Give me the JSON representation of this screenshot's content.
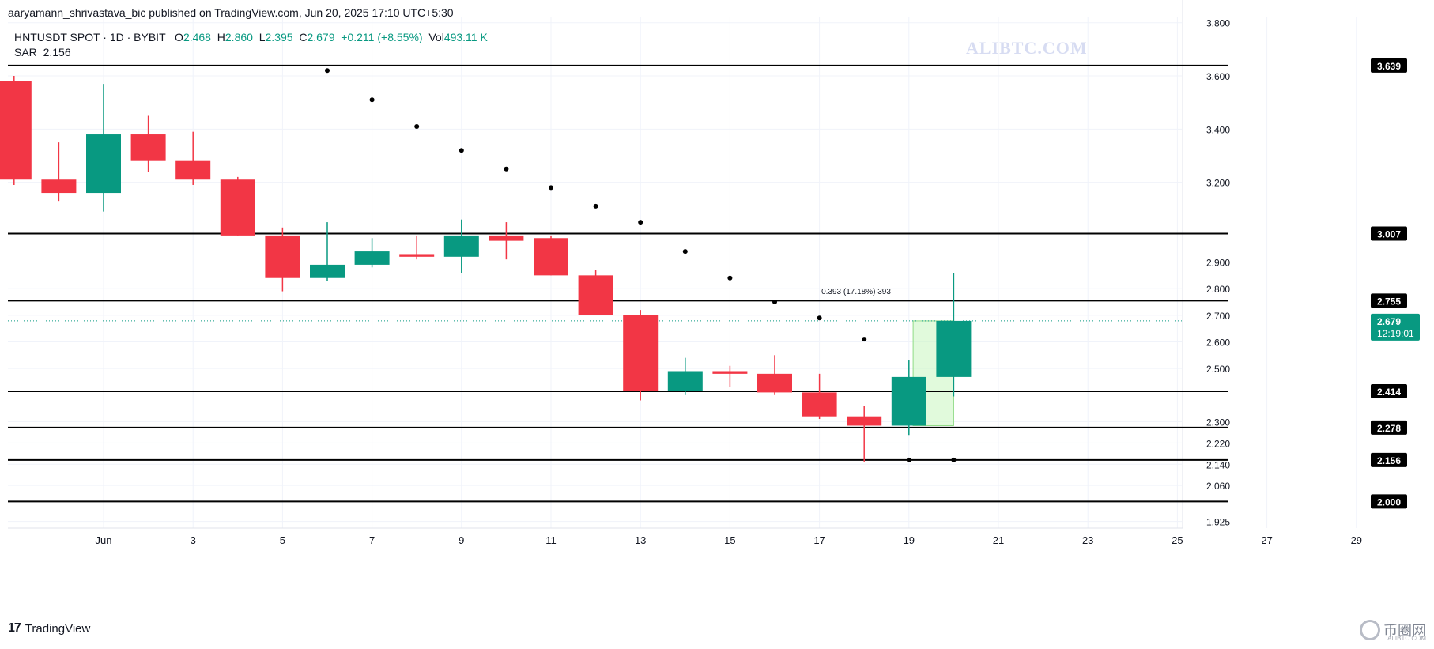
{
  "header": {
    "publish_line": "aaryamann_shrivastava_bic published on TradingView.com, Jun 20, 2025 17:10 UTC+5:30"
  },
  "legend": {
    "symbol": "HNTUSDT SPOT · 1D · BYBIT",
    "open_label": "O",
    "open": "2.468",
    "high_label": "H",
    "high": "2.860",
    "low_label": "L",
    "low": "2.395",
    "close_label": "C",
    "close": "2.679",
    "change": "+0.211 (+8.55%)",
    "vol_label": "Vol",
    "vol": "493.11 K",
    "indicator_name": "SAR",
    "indicator_value": "2.156"
  },
  "watermark": "ALIBTC.COM",
  "brand": {
    "name": "TradingView",
    "logo_text": "17"
  },
  "corner_brand": {
    "name": "币圈网",
    "sub": "ALIBTC.COM"
  },
  "colors": {
    "up": "#089981",
    "down": "#f23645",
    "sar": "#000000",
    "level": "#000000",
    "grid": "#f0f3fa",
    "price_tag": "#089981",
    "measure": "#c8f5c0"
  },
  "chart_data": {
    "type": "candlestick",
    "title": "",
    "xlabel": "",
    "ylabel": "",
    "ylim": [
      1.9,
      3.82
    ],
    "y_ticks": [
      3.8,
      3.6,
      3.4,
      3.2,
      2.9,
      2.8,
      2.7,
      2.6,
      2.5,
      2.3,
      2.22,
      2.14,
      2.06,
      1.925
    ],
    "y_tick_labels": [
      "3.800",
      "3.600",
      "3.400",
      "3.200",
      "2.900",
      "2.800",
      "2.700",
      "2.600",
      "2.500",
      "2.300",
      "2.220",
      "2.140",
      "2.060",
      "1.925"
    ],
    "x_ticks": [
      1,
      3,
      5,
      7,
      9,
      11,
      13,
      15,
      17,
      19,
      21,
      23,
      25,
      27,
      29
    ],
    "x_tick_labels": [
      "Jun",
      "3",
      "5",
      "7",
      "9",
      "11",
      "13",
      "15",
      "17",
      "19",
      "21",
      "23",
      "25",
      "27",
      "29"
    ],
    "candles": [
      {
        "day": 30,
        "o": 3.58,
        "h": 3.6,
        "l": 3.19,
        "c": 3.21
      },
      {
        "day": 31,
        "o": 3.21,
        "h": 3.35,
        "l": 3.13,
        "c": 3.16
      },
      {
        "day": 1,
        "o": 3.16,
        "h": 3.57,
        "l": 3.09,
        "c": 3.38
      },
      {
        "day": 2,
        "o": 3.38,
        "h": 3.45,
        "l": 3.24,
        "c": 3.28
      },
      {
        "day": 3,
        "o": 3.28,
        "h": 3.39,
        "l": 3.19,
        "c": 3.21
      },
      {
        "day": 4,
        "o": 3.21,
        "h": 3.22,
        "l": 3.0,
        "c": 3.0
      },
      {
        "day": 5,
        "o": 3.0,
        "h": 3.03,
        "l": 2.79,
        "c": 2.84
      },
      {
        "day": 6,
        "o": 2.84,
        "h": 3.05,
        "l": 2.83,
        "c": 2.89
      },
      {
        "day": 7,
        "o": 2.89,
        "h": 2.99,
        "l": 2.88,
        "c": 2.94
      },
      {
        "day": 8,
        "o": 2.93,
        "h": 3.0,
        "l": 2.91,
        "c": 2.92
      },
      {
        "day": 9,
        "o": 2.92,
        "h": 3.06,
        "l": 2.86,
        "c": 3.0
      },
      {
        "day": 10,
        "o": 3.0,
        "h": 3.05,
        "l": 2.91,
        "c": 2.98
      },
      {
        "day": 11,
        "o": 2.99,
        "h": 3.0,
        "l": 2.85,
        "c": 2.85
      },
      {
        "day": 12,
        "o": 2.85,
        "h": 2.87,
        "l": 2.7,
        "c": 2.7
      },
      {
        "day": 13,
        "o": 2.7,
        "h": 2.72,
        "l": 2.38,
        "c": 2.415
      },
      {
        "day": 14,
        "o": 2.415,
        "h": 2.54,
        "l": 2.4,
        "c": 2.49
      },
      {
        "day": 15,
        "o": 2.49,
        "h": 2.51,
        "l": 2.43,
        "c": 2.48
      },
      {
        "day": 16,
        "o": 2.48,
        "h": 2.55,
        "l": 2.4,
        "c": 2.41
      },
      {
        "day": 17,
        "o": 2.41,
        "h": 2.48,
        "l": 2.31,
        "c": 2.32
      },
      {
        "day": 18,
        "o": 2.32,
        "h": 2.36,
        "l": 2.15,
        "c": 2.285
      },
      {
        "day": 19,
        "o": 2.285,
        "h": 2.53,
        "l": 2.25,
        "c": 2.468
      },
      {
        "day": 20,
        "o": 2.468,
        "h": 2.86,
        "l": 2.395,
        "c": 2.679
      }
    ],
    "sar": [
      {
        "day": 6,
        "v": 3.62
      },
      {
        "day": 7,
        "v": 3.51
      },
      {
        "day": 8,
        "v": 3.41
      },
      {
        "day": 9,
        "v": 3.32
      },
      {
        "day": 10,
        "v": 3.25
      },
      {
        "day": 11,
        "v": 3.18
      },
      {
        "day": 12,
        "v": 3.11
      },
      {
        "day": 13,
        "v": 3.05
      },
      {
        "day": 14,
        "v": 2.94
      },
      {
        "day": 15,
        "v": 2.84
      },
      {
        "day": 16,
        "v": 2.75
      },
      {
        "day": 17,
        "v": 2.69
      },
      {
        "day": 18,
        "v": 2.61
      },
      {
        "day": 19,
        "v": 2.156
      },
      {
        "day": 20,
        "v": 2.156
      }
    ],
    "levels": [
      {
        "value": 3.639,
        "label": "3.639"
      },
      {
        "value": 3.007,
        "label": "3.007"
      },
      {
        "value": 2.755,
        "label": "2.755"
      },
      {
        "value": 2.414,
        "label": "2.414"
      },
      {
        "value": 2.278,
        "label": "2.278"
      },
      {
        "value": 2.156,
        "label": "2.156"
      },
      {
        "value": 2.0,
        "label": "2.000"
      }
    ],
    "last_price": {
      "value": 2.679,
      "label": "2.679",
      "countdown": "12:19:01"
    },
    "measure": {
      "from": 2.285,
      "to": 2.679,
      "day_from": 19.5,
      "day_to": 20,
      "label": "0.393 (17.18%) 393"
    }
  }
}
